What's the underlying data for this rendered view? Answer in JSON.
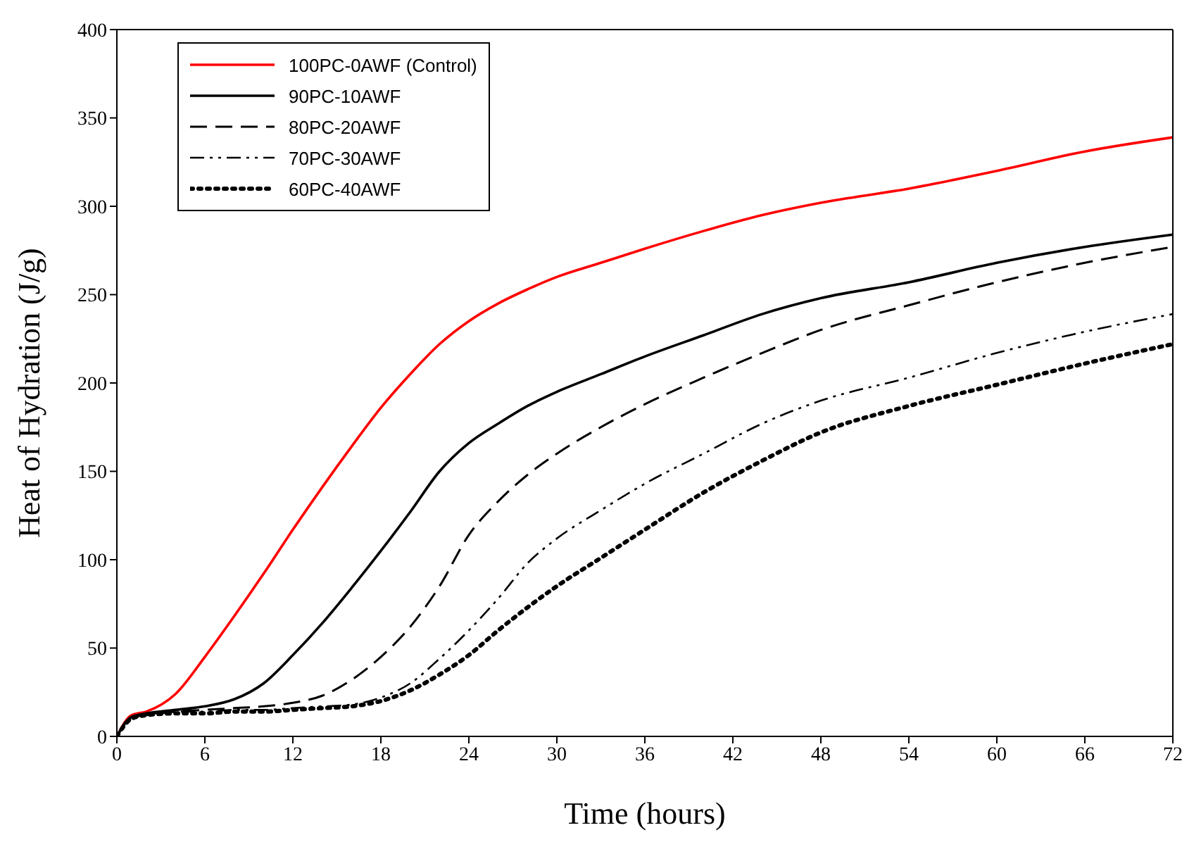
{
  "chart_data": {
    "type": "line",
    "xlabel": "Time (hours)",
    "ylabel": "Heat of  Hydration (J/g)",
    "x": [
      0,
      1,
      2,
      4,
      6,
      8,
      10,
      12,
      14,
      16,
      18,
      20,
      22,
      24,
      26,
      28,
      30,
      33,
      36,
      40,
      44,
      48,
      54,
      60,
      66,
      72
    ],
    "xlim": [
      0,
      72
    ],
    "xticks": [
      0,
      6,
      12,
      18,
      24,
      30,
      36,
      42,
      48,
      54,
      60,
      66,
      72
    ],
    "ylim": [
      0,
      400
    ],
    "yticks": [
      0,
      50,
      100,
      150,
      200,
      250,
      300,
      350,
      400
    ],
    "grid": false,
    "legend": "top left",
    "marker": "none",
    "series": [
      {
        "name": "100PC-0AWF (Control)",
        "color": "#ff0000",
        "line_style": "solid",
        "values": [
          0,
          12,
          14,
          24,
          45,
          68,
          92,
          117,
          141,
          164,
          186,
          205,
          222,
          235,
          245,
          253,
          260,
          268,
          276,
          286,
          295,
          302,
          310,
          320,
          331,
          339
        ]
      },
      {
        "name": "90PC-10AWF",
        "color": "#000000",
        "line_style": "solid",
        "values": [
          0,
          11,
          13,
          15,
          17,
          21,
          30,
          46,
          64,
          84,
          105,
          127,
          150,
          166,
          177,
          187,
          195,
          205,
          215,
          227,
          239,
          248,
          257,
          268,
          277,
          284
        ]
      },
      {
        "name": "80PC-20AWF",
        "color": "#000000",
        "line_style": "dashed",
        "values": [
          0,
          11,
          12,
          14,
          15,
          16,
          17,
          19,
          23,
          32,
          45,
          62,
          85,
          114,
          133,
          148,
          160,
          175,
          188,
          203,
          217,
          230,
          244,
          257,
          268,
          277
        ]
      },
      {
        "name": "70PC-30AWF",
        "color": "#000000",
        "line_style": "dashdot",
        "values": [
          0,
          10,
          12,
          14,
          14,
          15,
          15,
          16,
          17,
          18,
          22,
          30,
          44,
          60,
          78,
          98,
          112,
          128,
          143,
          160,
          177,
          190,
          203,
          217,
          229,
          239
        ]
      },
      {
        "name": "60PC-40AWF",
        "color": "#000000",
        "line_style": "dotted",
        "values": [
          0,
          10,
          12,
          13,
          13,
          14,
          14,
          15,
          16,
          17,
          20,
          26,
          35,
          46,
          60,
          73,
          85,
          101,
          117,
          138,
          156,
          172,
          187,
          199,
          211,
          222
        ]
      }
    ]
  }
}
